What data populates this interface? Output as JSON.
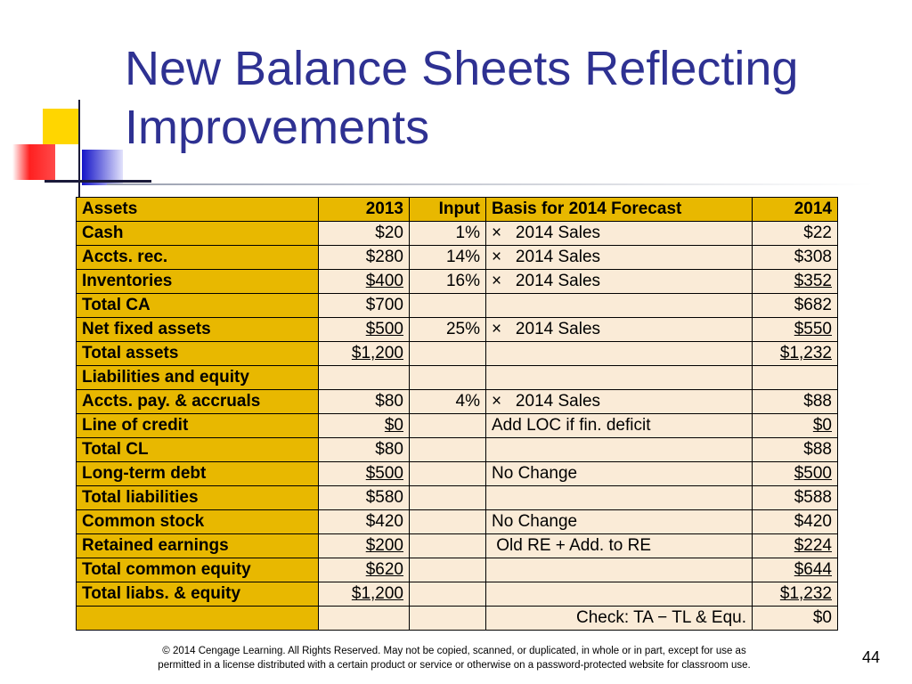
{
  "slide": {
    "title_line1": "New Balance Sheets Reflecting",
    "title_line2": "Improvements",
    "footer_line1": "© 2014 Cengage Learning. All Rights Reserved. May not be copied, scanned, or duplicated, in whole or in part, except for use as",
    "footer_line2": "permitted in a license distributed with a certain product or service or otherwise on a password-protected website for classroom use.",
    "page_number": "44"
  },
  "table": {
    "headers": [
      "Assets",
      "2013",
      "Input",
      "Basis for 2014 Forecast",
      "2014"
    ],
    "rows": [
      [
        "Cash",
        "$20",
        "1%",
        "×   2014 Sales",
        "$22"
      ],
      [
        "Accts. rec.",
        "$280",
        "14%",
        "×   2014 Sales",
        "$308"
      ],
      [
        "Inventories",
        "$400",
        "16%",
        "×   2014 Sales",
        "$352"
      ],
      [
        "Total CA",
        "$700",
        "",
        "",
        "$682"
      ],
      [
        "Net fixed assets",
        "$500",
        "25%",
        "×   2014 Sales",
        "$550"
      ],
      [
        "Total assets",
        "$1,200",
        "",
        "",
        "$1,232"
      ],
      [
        "Liabilities and equity",
        "",
        "",
        "",
        ""
      ],
      [
        "Accts. pay. & accruals",
        "$80",
        "4%",
        "×   2014 Sales",
        "$88"
      ],
      [
        "Line of credit",
        "$0",
        "",
        "Add LOC if fin. deficit",
        "$0"
      ],
      [
        "Total CL",
        "$80",
        "",
        "",
        "$88"
      ],
      [
        "Long-term debt",
        "$500",
        "",
        "No Change",
        "$500"
      ],
      [
        "Total liabilities",
        "$580",
        "",
        "",
        "$588"
      ],
      [
        "Common stock",
        "$420",
        "",
        "No Change",
        "$420"
      ],
      [
        "Retained earnings",
        "$200",
        "",
        " Old RE + Add. to RE",
        "$224"
      ],
      [
        "Total common equity",
        "$620",
        "",
        "",
        "$644"
      ],
      [
        "Total liabs. & equity",
        "$1,200",
        "",
        "",
        "$1,232"
      ],
      [
        "",
        "",
        "",
        "Check: TA − TL & Equ.",
        "$0"
      ]
    ]
  }
}
